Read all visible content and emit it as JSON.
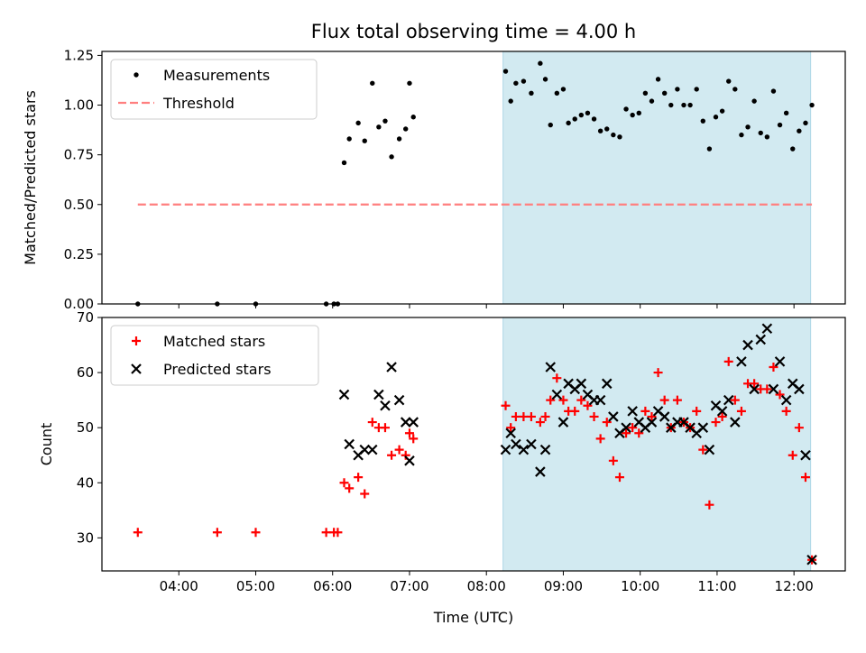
{
  "chart_data": {
    "title": "Flux total observing time = 4.00 h",
    "xlabel": "Time (UTC)",
    "x_ticks": [
      "04:00",
      "05:00",
      "06:00",
      "07:00",
      "08:00",
      "09:00",
      "10:00",
      "11:00",
      "12:00"
    ],
    "x_range": [
      "03:00",
      "12:40"
    ],
    "highlight_span": [
      "08:13",
      "12:13"
    ],
    "highlight_color": "#add8e6",
    "panels": [
      {
        "type": "scatter",
        "ylabel": "Matched/Predicted stars",
        "ylim": [
          0,
          1.27
        ],
        "y_ticks": [
          "0.00",
          "0.25",
          "0.50",
          "0.75",
          "1.00",
          "1.25"
        ],
        "legend": {
          "position": "top-left",
          "entries": [
            "Measurements",
            "Threshold"
          ]
        },
        "series": [
          {
            "name": "Measurements",
            "marker": "dot",
            "color": "#000000",
            "points": [
              [
                "03:28",
                0.0
              ],
              [
                "04:30",
                0.0
              ],
              [
                "05:00",
                0.0
              ],
              [
                "05:55",
                0.0
              ],
              [
                "06:01",
                0.0
              ],
              [
                "06:04",
                0.0
              ],
              [
                "06:09",
                0.71
              ],
              [
                "06:13",
                0.83
              ],
              [
                "06:20",
                0.91
              ],
              [
                "06:25",
                0.82
              ],
              [
                "06:31",
                1.11
              ],
              [
                "06:36",
                0.89
              ],
              [
                "06:41",
                0.92
              ],
              [
                "06:46",
                0.74
              ],
              [
                "06:52",
                0.83
              ],
              [
                "06:57",
                0.88
              ],
              [
                "07:00",
                1.11
              ],
              [
                "07:03",
                0.94
              ],
              [
                "08:15",
                1.17
              ],
              [
                "08:19",
                1.02
              ],
              [
                "08:23",
                1.11
              ],
              [
                "08:29",
                1.12
              ],
              [
                "08:35",
                1.06
              ],
              [
                "08:42",
                1.21
              ],
              [
                "08:46",
                1.13
              ],
              [
                "08:50",
                0.9
              ],
              [
                "08:55",
                1.06
              ],
              [
                "09:00",
                1.08
              ],
              [
                "09:04",
                0.91
              ],
              [
                "09:09",
                0.93
              ],
              [
                "09:14",
                0.95
              ],
              [
                "09:19",
                0.96
              ],
              [
                "09:24",
                0.93
              ],
              [
                "09:29",
                0.87
              ],
              [
                "09:34",
                0.88
              ],
              [
                "09:39",
                0.85
              ],
              [
                "09:44",
                0.84
              ],
              [
                "09:49",
                0.98
              ],
              [
                "09:54",
                0.95
              ],
              [
                "09:59",
                0.96
              ],
              [
                "10:04",
                1.06
              ],
              [
                "10:09",
                1.02
              ],
              [
                "10:14",
                1.13
              ],
              [
                "10:19",
                1.06
              ],
              [
                "10:24",
                1.0
              ],
              [
                "10:29",
                1.08
              ],
              [
                "10:34",
                1.0
              ],
              [
                "10:39",
                1.0
              ],
              [
                "10:44",
                1.08
              ],
              [
                "10:49",
                0.92
              ],
              [
                "10:54",
                0.78
              ],
              [
                "10:59",
                0.94
              ],
              [
                "11:04",
                0.97
              ],
              [
                "11:09",
                1.12
              ],
              [
                "11:14",
                1.08
              ],
              [
                "11:19",
                0.85
              ],
              [
                "11:24",
                0.89
              ],
              [
                "11:29",
                1.02
              ],
              [
                "11:34",
                0.86
              ],
              [
                "11:39",
                0.84
              ],
              [
                "11:44",
                1.07
              ],
              [
                "11:49",
                0.9
              ],
              [
                "11:54",
                0.96
              ],
              [
                "11:59",
                0.78
              ],
              [
                "12:04",
                0.87
              ],
              [
                "12:09",
                0.91
              ],
              [
                "12:14",
                1.0
              ]
            ]
          },
          {
            "name": "Threshold",
            "marker": "dashed-line",
            "color": "#ff7f7f",
            "y": 0.5,
            "x_span": [
              "03:28",
              "12:14"
            ]
          }
        ]
      },
      {
        "type": "scatter",
        "ylabel": "Count",
        "ylim": [
          24,
          70
        ],
        "y_ticks": [
          "30",
          "40",
          "50",
          "60",
          "70"
        ],
        "legend": {
          "position": "top-left",
          "entries": [
            "Matched stars",
            "Predicted stars"
          ]
        },
        "series": [
          {
            "name": "Matched stars",
            "marker": "plus",
            "color": "#ff0000",
            "points": [
              [
                "03:28",
                31
              ],
              [
                "04:30",
                31
              ],
              [
                "05:00",
                31
              ],
              [
                "05:55",
                31
              ],
              [
                "06:01",
                31
              ],
              [
                "06:04",
                31
              ],
              [
                "06:09",
                40
              ],
              [
                "06:13",
                39
              ],
              [
                "06:20",
                41
              ],
              [
                "06:25",
                38
              ],
              [
                "06:31",
                51
              ],
              [
                "06:36",
                50
              ],
              [
                "06:41",
                50
              ],
              [
                "06:46",
                45
              ],
              [
                "06:52",
                46
              ],
              [
                "06:57",
                45
              ],
              [
                "07:00",
                49
              ],
              [
                "07:03",
                48
              ],
              [
                "08:15",
                54
              ],
              [
                "08:19",
                50
              ],
              [
                "08:23",
                52
              ],
              [
                "08:29",
                52
              ],
              [
                "08:35",
                52
              ],
              [
                "08:42",
                51
              ],
              [
                "08:46",
                52
              ],
              [
                "08:50",
                55
              ],
              [
                "08:55",
                59
              ],
              [
                "09:00",
                55
              ],
              [
                "09:04",
                53
              ],
              [
                "09:09",
                53
              ],
              [
                "09:14",
                55
              ],
              [
                "09:19",
                54
              ],
              [
                "09:24",
                52
              ],
              [
                "09:29",
                48
              ],
              [
                "09:34",
                51
              ],
              [
                "09:39",
                44
              ],
              [
                "09:44",
                41
              ],
              [
                "09:49",
                49
              ],
              [
                "09:54",
                50
              ],
              [
                "09:59",
                49
              ],
              [
                "10:04",
                53
              ],
              [
                "10:09",
                52
              ],
              [
                "10:14",
                60
              ],
              [
                "10:19",
                55
              ],
              [
                "10:24",
                50
              ],
              [
                "10:29",
                55
              ],
              [
                "10:34",
                51
              ],
              [
                "10:39",
                50
              ],
              [
                "10:44",
                53
              ],
              [
                "10:49",
                46
              ],
              [
                "10:54",
                36
              ],
              [
                "10:59",
                51
              ],
              [
                "11:04",
                52
              ],
              [
                "11:09",
                62
              ],
              [
                "11:14",
                55
              ],
              [
                "11:19",
                53
              ],
              [
                "11:24",
                58
              ],
              [
                "11:29",
                58
              ],
              [
                "11:34",
                57
              ],
              [
                "11:39",
                57
              ],
              [
                "11:44",
                61
              ],
              [
                "11:49",
                56
              ],
              [
                "11:54",
                53
              ],
              [
                "11:59",
                45
              ],
              [
                "12:04",
                50
              ],
              [
                "12:09",
                41
              ],
              [
                "12:14",
                26
              ]
            ]
          },
          {
            "name": "Predicted stars",
            "marker": "x",
            "color": "#000000",
            "points": [
              [
                "06:09",
                56
              ],
              [
                "06:13",
                47
              ],
              [
                "06:20",
                45
              ],
              [
                "06:25",
                46
              ],
              [
                "06:31",
                46
              ],
              [
                "06:36",
                56
              ],
              [
                "06:41",
                54
              ],
              [
                "06:46",
                61
              ],
              [
                "06:52",
                55
              ],
              [
                "06:57",
                51
              ],
              [
                "07:00",
                44
              ],
              [
                "07:03",
                51
              ],
              [
                "08:15",
                46
              ],
              [
                "08:19",
                49
              ],
              [
                "08:23",
                47
              ],
              [
                "08:29",
                46
              ],
              [
                "08:35",
                47
              ],
              [
                "08:42",
                42
              ],
              [
                "08:46",
                46
              ],
              [
                "08:50",
                61
              ],
              [
                "08:55",
                56
              ],
              [
                "09:00",
                51
              ],
              [
                "09:04",
                58
              ],
              [
                "09:09",
                57
              ],
              [
                "09:14",
                58
              ],
              [
                "09:19",
                56
              ],
              [
                "09:24",
                55
              ],
              [
                "09:29",
                55
              ],
              [
                "09:34",
                58
              ],
              [
                "09:39",
                52
              ],
              [
                "09:44",
                49
              ],
              [
                "09:49",
                50
              ],
              [
                "09:54",
                53
              ],
              [
                "09:59",
                51
              ],
              [
                "10:04",
                50
              ],
              [
                "10:09",
                51
              ],
              [
                "10:14",
                53
              ],
              [
                "10:19",
                52
              ],
              [
                "10:24",
                50
              ],
              [
                "10:29",
                51
              ],
              [
                "10:34",
                51
              ],
              [
                "10:39",
                50
              ],
              [
                "10:44",
                49
              ],
              [
                "10:49",
                50
              ],
              [
                "10:54",
                46
              ],
              [
                "10:59",
                54
              ],
              [
                "11:04",
                53
              ],
              [
                "11:09",
                55
              ],
              [
                "11:14",
                51
              ],
              [
                "11:19",
                62
              ],
              [
                "11:24",
                65
              ],
              [
                "11:29",
                57
              ],
              [
                "11:34",
                66
              ],
              [
                "11:39",
                68
              ],
              [
                "11:44",
                57
              ],
              [
                "11:49",
                62
              ],
              [
                "11:54",
                55
              ],
              [
                "11:59",
                58
              ],
              [
                "12:04",
                57
              ],
              [
                "12:09",
                45
              ],
              [
                "12:14",
                26
              ]
            ]
          }
        ]
      }
    ]
  }
}
